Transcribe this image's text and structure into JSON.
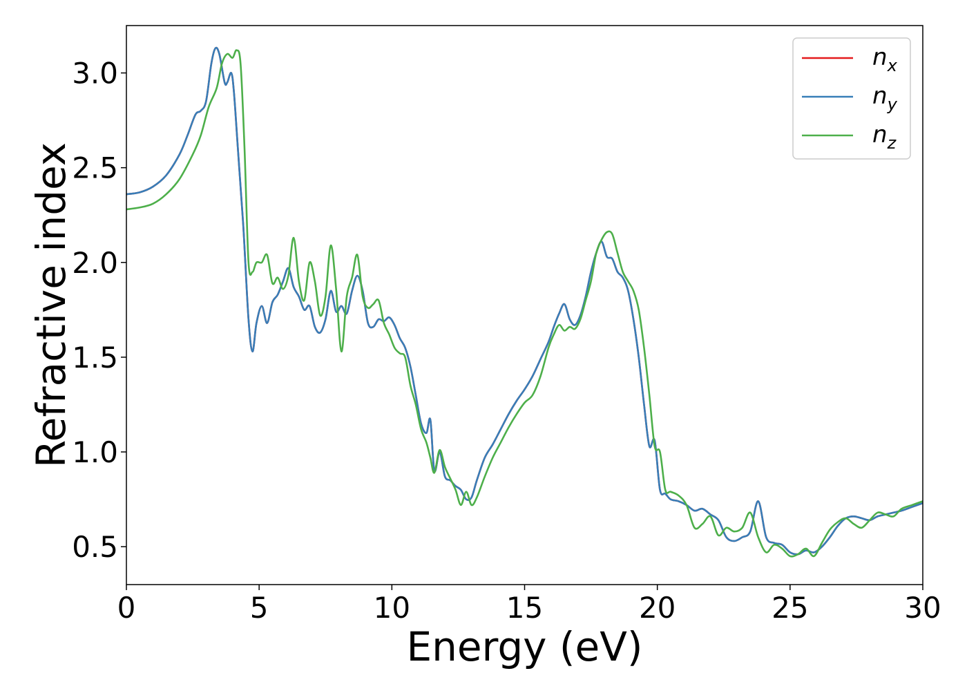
{
  "chart_data": {
    "type": "line",
    "xlabel": "Energy (eV)",
    "ylabel": "Refractive index",
    "xlim": [
      0,
      30
    ],
    "ylim": [
      0.3,
      3.25
    ],
    "xticks": [
      0,
      5,
      10,
      15,
      20,
      25,
      30
    ],
    "xtick_labels": [
      "0",
      "5",
      "10",
      "15",
      "20",
      "25",
      "30"
    ],
    "yticks": [
      0.5,
      1.0,
      1.5,
      2.0,
      2.5,
      3.0
    ],
    "ytick_labels": [
      "0.5",
      "1.0",
      "1.5",
      "2.0",
      "2.5",
      "3.0"
    ],
    "grid": false,
    "legend_position": "top-right",
    "series": [
      {
        "name": "n",
        "subscript": "x",
        "color": "#e41a1c",
        "x": [
          0,
          0.5,
          1,
          1.5,
          2,
          2.3,
          2.6,
          2.8,
          3.0,
          3.2,
          3.35,
          3.5,
          3.7,
          3.8,
          3.95,
          4.05,
          4.2,
          4.4,
          4.6,
          4.75,
          4.9,
          5.1,
          5.3,
          5.5,
          5.7,
          5.9,
          6.1,
          6.3,
          6.5,
          6.7,
          6.9,
          7.1,
          7.3,
          7.5,
          7.7,
          7.9,
          8.1,
          8.3,
          8.5,
          8.7,
          8.9,
          9.1,
          9.3,
          9.5,
          9.7,
          9.9,
          10.1,
          10.3,
          10.5,
          10.7,
          10.9,
          11.1,
          11.3,
          11.45,
          11.6,
          11.8,
          12.0,
          12.2,
          12.4,
          12.6,
          12.8,
          13.0,
          13.2,
          13.5,
          13.8,
          14.1,
          14.4,
          14.7,
          15.0,
          15.3,
          15.6,
          15.9,
          16.1,
          16.3,
          16.5,
          16.7,
          16.9,
          17.1,
          17.3,
          17.5,
          17.7,
          17.9,
          18.1,
          18.3,
          18.5,
          18.7,
          18.9,
          19.1,
          19.3,
          19.5,
          19.7,
          19.9,
          20.1,
          20.3,
          20.5,
          20.8,
          21.1,
          21.4,
          21.7,
          22.0,
          22.3,
          22.6,
          22.9,
          23.2,
          23.5,
          23.8,
          24.1,
          24.4,
          24.7,
          25.0,
          25.3,
          25.6,
          25.9,
          26.2,
          26.5,
          26.8,
          27.1,
          27.4,
          27.7,
          28.0,
          28.3,
          28.6,
          28.9,
          29.2,
          29.6,
          30.0
        ],
        "y": [
          2.36,
          2.37,
          2.4,
          2.46,
          2.57,
          2.67,
          2.78,
          2.8,
          2.85,
          3.05,
          3.13,
          3.1,
          2.95,
          2.95,
          3.0,
          2.9,
          2.6,
          2.2,
          1.7,
          1.53,
          1.68,
          1.77,
          1.68,
          1.79,
          1.83,
          1.9,
          1.97,
          1.87,
          1.82,
          1.75,
          1.77,
          1.66,
          1.63,
          1.7,
          1.85,
          1.74,
          1.77,
          1.73,
          1.85,
          1.93,
          1.85,
          1.68,
          1.66,
          1.7,
          1.69,
          1.71,
          1.67,
          1.6,
          1.55,
          1.45,
          1.3,
          1.15,
          1.1,
          1.17,
          0.9,
          1.0,
          0.87,
          0.85,
          0.82,
          0.8,
          0.75,
          0.76,
          0.85,
          0.97,
          1.04,
          1.12,
          1.2,
          1.27,
          1.33,
          1.4,
          1.49,
          1.58,
          1.66,
          1.73,
          1.78,
          1.7,
          1.67,
          1.72,
          1.82,
          1.95,
          2.05,
          2.11,
          2.03,
          2.02,
          1.95,
          1.92,
          1.85,
          1.7,
          1.5,
          1.25,
          1.03,
          1.06,
          0.8,
          0.78,
          0.75,
          0.74,
          0.72,
          0.69,
          0.7,
          0.67,
          0.64,
          0.55,
          0.53,
          0.55,
          0.58,
          0.74,
          0.55,
          0.52,
          0.51,
          0.47,
          0.46,
          0.48,
          0.47,
          0.5,
          0.55,
          0.61,
          0.65,
          0.66,
          0.65,
          0.64,
          0.66,
          0.67,
          0.68,
          0.69,
          0.71,
          0.73
        ]
      },
      {
        "name": "n",
        "subscript": "y",
        "color": "#377eb8",
        "x": [
          0,
          0.5,
          1,
          1.5,
          2,
          2.3,
          2.6,
          2.8,
          3.0,
          3.2,
          3.35,
          3.5,
          3.7,
          3.8,
          3.95,
          4.05,
          4.2,
          4.4,
          4.6,
          4.75,
          4.9,
          5.1,
          5.3,
          5.5,
          5.7,
          5.9,
          6.1,
          6.3,
          6.5,
          6.7,
          6.9,
          7.1,
          7.3,
          7.5,
          7.7,
          7.9,
          8.1,
          8.3,
          8.5,
          8.7,
          8.9,
          9.1,
          9.3,
          9.5,
          9.7,
          9.9,
          10.1,
          10.3,
          10.5,
          10.7,
          10.9,
          11.1,
          11.3,
          11.45,
          11.6,
          11.8,
          12.0,
          12.2,
          12.4,
          12.6,
          12.8,
          13.0,
          13.2,
          13.5,
          13.8,
          14.1,
          14.4,
          14.7,
          15.0,
          15.3,
          15.6,
          15.9,
          16.1,
          16.3,
          16.5,
          16.7,
          16.9,
          17.1,
          17.3,
          17.5,
          17.7,
          17.9,
          18.1,
          18.3,
          18.5,
          18.7,
          18.9,
          19.1,
          19.3,
          19.5,
          19.7,
          19.9,
          20.1,
          20.3,
          20.5,
          20.8,
          21.1,
          21.4,
          21.7,
          22.0,
          22.3,
          22.6,
          22.9,
          23.2,
          23.5,
          23.8,
          24.1,
          24.4,
          24.7,
          25.0,
          25.3,
          25.6,
          25.9,
          26.2,
          26.5,
          26.8,
          27.1,
          27.4,
          27.7,
          28.0,
          28.3,
          28.6,
          28.9,
          29.2,
          29.6,
          30.0
        ],
        "y": [
          2.36,
          2.37,
          2.4,
          2.46,
          2.57,
          2.67,
          2.78,
          2.8,
          2.85,
          3.05,
          3.13,
          3.1,
          2.95,
          2.95,
          3.0,
          2.9,
          2.6,
          2.2,
          1.7,
          1.53,
          1.68,
          1.77,
          1.68,
          1.79,
          1.83,
          1.9,
          1.97,
          1.87,
          1.82,
          1.75,
          1.77,
          1.66,
          1.63,
          1.7,
          1.85,
          1.74,
          1.77,
          1.73,
          1.85,
          1.93,
          1.85,
          1.68,
          1.66,
          1.7,
          1.69,
          1.71,
          1.67,
          1.6,
          1.55,
          1.45,
          1.3,
          1.15,
          1.1,
          1.17,
          0.9,
          1.0,
          0.87,
          0.85,
          0.82,
          0.8,
          0.75,
          0.76,
          0.85,
          0.97,
          1.04,
          1.12,
          1.2,
          1.27,
          1.33,
          1.4,
          1.49,
          1.58,
          1.66,
          1.73,
          1.78,
          1.7,
          1.67,
          1.72,
          1.82,
          1.95,
          2.05,
          2.11,
          2.03,
          2.02,
          1.95,
          1.92,
          1.85,
          1.7,
          1.5,
          1.25,
          1.03,
          1.06,
          0.8,
          0.78,
          0.75,
          0.74,
          0.72,
          0.69,
          0.7,
          0.67,
          0.64,
          0.55,
          0.53,
          0.55,
          0.58,
          0.74,
          0.55,
          0.52,
          0.51,
          0.47,
          0.46,
          0.48,
          0.47,
          0.5,
          0.55,
          0.61,
          0.65,
          0.66,
          0.65,
          0.64,
          0.66,
          0.67,
          0.68,
          0.69,
          0.71,
          0.73
        ]
      },
      {
        "name": "n",
        "subscript": "z",
        "color": "#4daf4a",
        "x": [
          0,
          0.5,
          1,
          1.5,
          2,
          2.5,
          2.8,
          3.1,
          3.4,
          3.6,
          3.8,
          4.0,
          4.15,
          4.3,
          4.45,
          4.6,
          4.75,
          4.9,
          5.1,
          5.3,
          5.5,
          5.7,
          5.9,
          6.1,
          6.3,
          6.5,
          6.7,
          6.9,
          7.1,
          7.3,
          7.5,
          7.7,
          7.9,
          8.1,
          8.3,
          8.5,
          8.7,
          8.9,
          9.1,
          9.3,
          9.5,
          9.7,
          9.9,
          10.1,
          10.3,
          10.5,
          10.7,
          10.9,
          11.1,
          11.3,
          11.45,
          11.6,
          11.8,
          12.0,
          12.2,
          12.4,
          12.6,
          12.8,
          13.0,
          13.2,
          13.5,
          13.8,
          14.1,
          14.4,
          14.7,
          15.0,
          15.3,
          15.6,
          15.9,
          16.1,
          16.3,
          16.5,
          16.7,
          16.9,
          17.1,
          17.3,
          17.5,
          17.7,
          17.9,
          18.1,
          18.3,
          18.5,
          18.7,
          18.9,
          19.1,
          19.3,
          19.5,
          19.7,
          19.9,
          20.1,
          20.3,
          20.5,
          20.8,
          21.1,
          21.4,
          21.7,
          22.0,
          22.3,
          22.6,
          22.9,
          23.2,
          23.5,
          23.8,
          24.1,
          24.4,
          24.7,
          25.0,
          25.3,
          25.6,
          25.9,
          26.2,
          26.5,
          26.8,
          27.1,
          27.4,
          27.7,
          28.0,
          28.3,
          28.6,
          28.9,
          29.2,
          29.6,
          30.0
        ],
        "y": [
          2.28,
          2.29,
          2.31,
          2.36,
          2.44,
          2.57,
          2.67,
          2.82,
          2.92,
          3.05,
          3.1,
          3.08,
          3.12,
          3.05,
          2.6,
          2.0,
          1.95,
          2.0,
          2.0,
          2.04,
          1.89,
          1.92,
          1.86,
          1.93,
          2.13,
          1.9,
          1.8,
          2.0,
          1.9,
          1.72,
          1.82,
          2.09,
          1.86,
          1.53,
          1.82,
          1.92,
          2.04,
          1.82,
          1.76,
          1.78,
          1.8,
          1.68,
          1.62,
          1.55,
          1.52,
          1.5,
          1.35,
          1.25,
          1.12,
          1.05,
          0.97,
          0.89,
          1.01,
          0.92,
          0.86,
          0.8,
          0.72,
          0.79,
          0.72,
          0.76,
          0.87,
          0.97,
          1.05,
          1.13,
          1.2,
          1.26,
          1.3,
          1.4,
          1.55,
          1.62,
          1.67,
          1.64,
          1.66,
          1.65,
          1.7,
          1.8,
          1.9,
          2.05,
          2.12,
          2.16,
          2.15,
          2.05,
          1.95,
          1.9,
          1.85,
          1.75,
          1.55,
          1.3,
          1.03,
          1.0,
          0.8,
          0.79,
          0.77,
          0.72,
          0.6,
          0.62,
          0.66,
          0.56,
          0.6,
          0.58,
          0.6,
          0.68,
          0.55,
          0.47,
          0.51,
          0.49,
          0.45,
          0.46,
          0.49,
          0.45,
          0.52,
          0.59,
          0.63,
          0.65,
          0.62,
          0.6,
          0.64,
          0.68,
          0.67,
          0.66,
          0.7,
          0.72,
          0.74
        ]
      }
    ]
  }
}
